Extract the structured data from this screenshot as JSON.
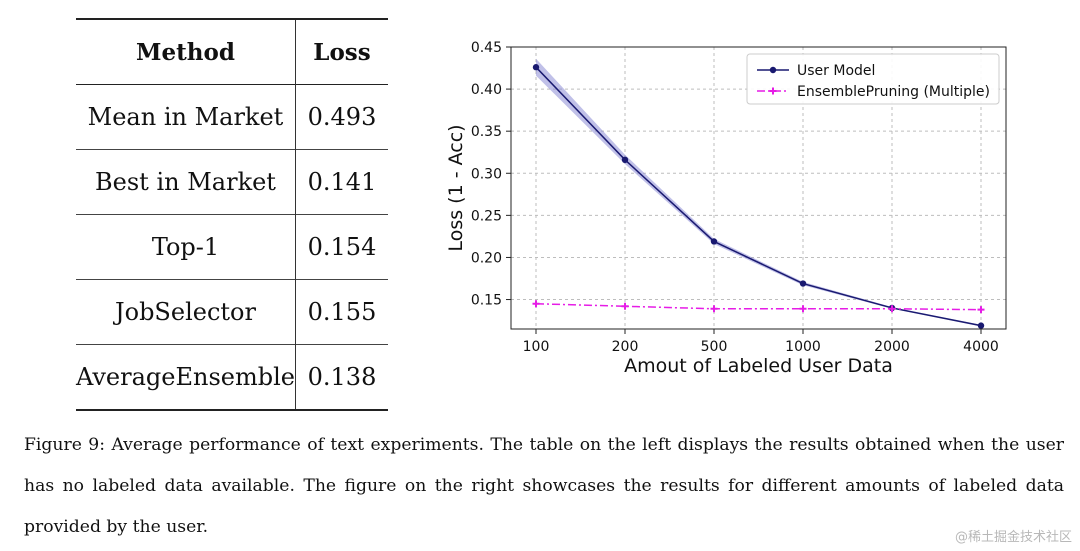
{
  "table": {
    "headers": [
      "Method",
      "Loss"
    ],
    "rows": [
      [
        "Mean in Market",
        "0.493"
      ],
      [
        "Best in Market",
        "0.141"
      ],
      [
        "Top-1",
        "0.154"
      ],
      [
        "JobSelector",
        "0.155"
      ],
      [
        "AverageEnsemble",
        "0.138"
      ]
    ]
  },
  "chart_data": {
    "type": "line",
    "title": "",
    "xlabel": "Amout of Labeled User Data",
    "ylabel": "Loss (1 - Acc)",
    "x": [
      "100",
      "200",
      "500",
      "1000",
      "2000",
      "4000"
    ],
    "ylim": [
      0.115,
      0.45
    ],
    "yticks": [
      "0.15",
      "0.20",
      "0.25",
      "0.30",
      "0.35",
      "0.40",
      "0.45"
    ],
    "grid": true,
    "legend_position": "top-right",
    "series": [
      {
        "name": "User Model",
        "color": "#191970",
        "marker": "circle",
        "linestyle": "solid",
        "values": [
          0.426,
          0.316,
          0.219,
          0.169,
          0.14,
          0.119
        ],
        "band_low": [
          0.416,
          0.311,
          0.216,
          0.167,
          0.139,
          0.118
        ],
        "band_high": [
          0.436,
          0.322,
          0.222,
          0.171,
          0.141,
          0.12
        ],
        "band_color": "#8c8cd6"
      },
      {
        "name": "EnsemblePruning (Multiple)",
        "color": "#e61ce6",
        "marker": "plus",
        "linestyle": "dashdot",
        "values": [
          0.145,
          0.142,
          0.139,
          0.139,
          0.139,
          0.138
        ]
      }
    ]
  },
  "caption": "Figure 9: Average performance of text experiments. The table on the left displays the results obtained when the user has no labeled data available. The figure on the right showcases the results for different amounts of labeled data provided by the user.",
  "watermark": "@稀土掘金技术社区"
}
